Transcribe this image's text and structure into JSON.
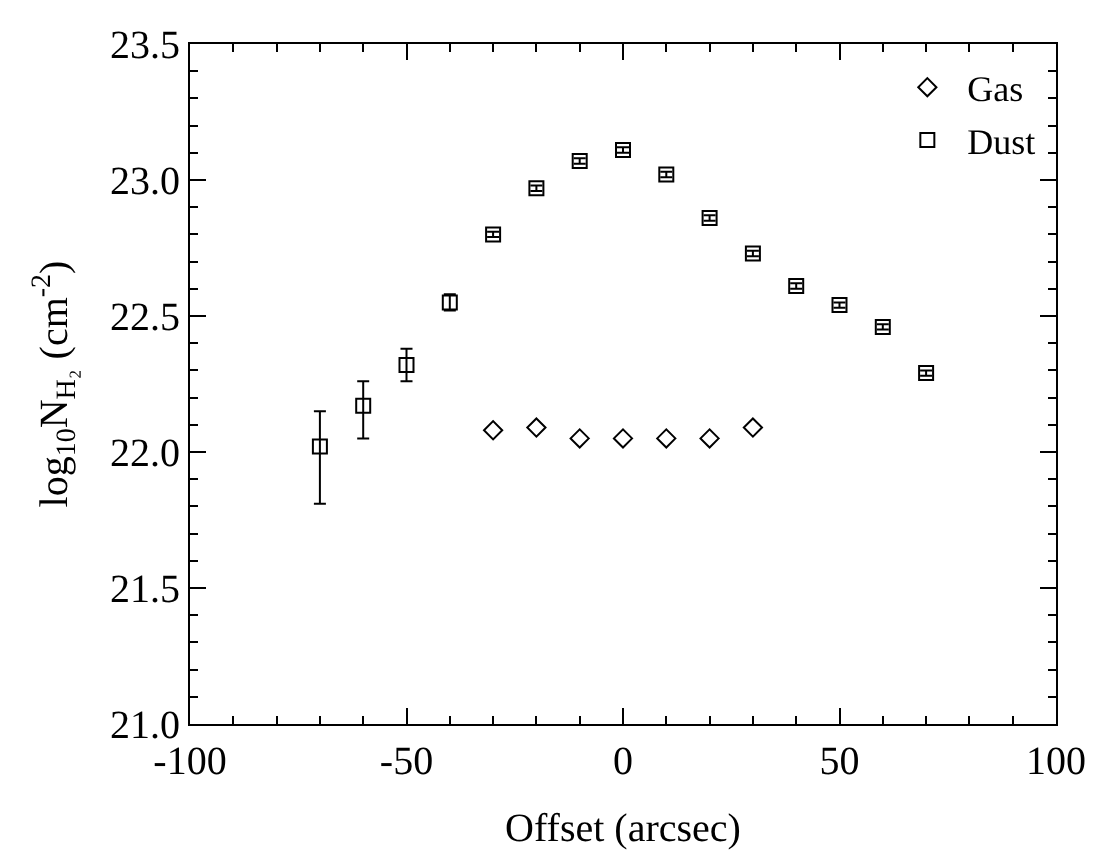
{
  "chart_data": {
    "type": "scatter",
    "xlabel": "Offset (arcsec)",
    "ylabel": "log$_{10}$N$_{H₂}$ (cm$^{-2}$)",
    "xlim": [
      -100,
      100
    ],
    "xticks": [
      -100,
      -50,
      0,
      50,
      100
    ],
    "ylim": [
      21.0,
      23.5
    ],
    "yticks": [
      {
        "value": 21.0,
        "label": "21.0"
      },
      21.5,
      {
        "value": 22.0,
        "label": "22.0"
      },
      22.5,
      {
        "value": 23.0,
        "label": "23.0"
      },
      23.5
    ],
    "legend": "top right",
    "series": [
      {
        "name": "Gas",
        "color": "#000000",
        "marker": "diamond",
        "x": [
          -30,
          -20,
          -10,
          0,
          10,
          20,
          30
        ],
        "values": [
          22.08,
          22.09,
          22.05,
          22.05,
          22.05,
          22.05,
          22.09
        ]
      },
      {
        "name": "Dust",
        "color": "#000000",
        "marker": "square",
        "x": [
          -70,
          -60,
          -50,
          -40,
          -30,
          -20,
          -10,
          0,
          10,
          20,
          30,
          40,
          50,
          60,
          70
        ],
        "values": [
          22.02,
          22.17,
          22.32,
          22.55,
          22.8,
          22.97,
          23.07,
          23.11,
          23.02,
          22.86,
          22.73,
          22.61,
          22.54,
          22.46,
          22.29
        ],
        "errors": [
          [
            21.81,
            22.15
          ],
          [
            22.05,
            22.26
          ],
          [
            22.26,
            22.38
          ],
          0.03,
          0.01,
          0.01,
          0.01,
          0.01,
          0.01,
          0.01,
          0.01,
          0.01,
          0.01,
          0.01,
          0.01
        ]
      }
    ]
  }
}
